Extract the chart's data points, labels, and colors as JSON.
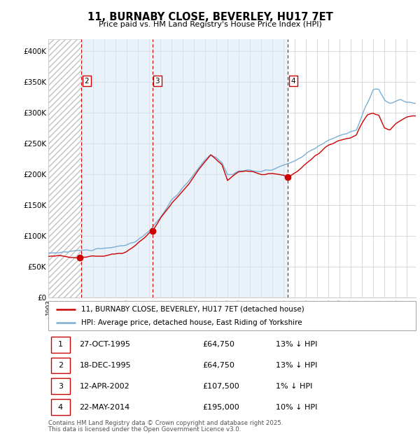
{
  "title": "11, BURNABY CLOSE, BEVERLEY, HU17 7ET",
  "subtitle": "Price paid vs. HM Land Registry's House Price Index (HPI)",
  "transactions": [
    {
      "num": 1,
      "date_label": "27-OCT-1995",
      "price": 64750,
      "pct": "13%",
      "dir": "↓",
      "year_x": 1995.82
    },
    {
      "num": 2,
      "date_label": "18-DEC-1995",
      "price": 64750,
      "pct": "13%",
      "dir": "↓",
      "year_x": 1995.96
    },
    {
      "num": 3,
      "date_label": "12-APR-2002",
      "price": 107500,
      "pct": "1%",
      "dir": "↓",
      "year_x": 2002.28
    },
    {
      "num": 4,
      "date_label": "22-MAY-2014",
      "price": 195000,
      "pct": "10%",
      "dir": "↓",
      "year_x": 2014.39
    }
  ],
  "legend_line1": "11, BURNABY CLOSE, BEVERLEY, HU17 7ET (detached house)",
  "legend_line2": "HPI: Average price, detached house, East Riding of Yorkshire",
  "footer1": "Contains HM Land Registry data © Crown copyright and database right 2025.",
  "footer2": "This data is licensed under the Open Government Licence v3.0.",
  "hpi_color": "#7bafd4",
  "price_color": "#cc0000",
  "marker_color": "#cc0000",
  "vline_color": "#cc0000",
  "bg_shaded_color": "#d8e8f5",
  "grid_color": "#cccccc",
  "ylim": [
    0,
    420000
  ],
  "yticks": [
    0,
    50000,
    100000,
    150000,
    200000,
    250000,
    300000,
    350000,
    400000
  ],
  "ytick_labels": [
    "£0",
    "£50K",
    "£100K",
    "£150K",
    "£200K",
    "£250K",
    "£300K",
    "£350K",
    "£400K"
  ],
  "xlim_start": 1993.0,
  "xlim_end": 2025.8,
  "hatch_end": 1995.96,
  "shade_start": 1995.96,
  "shade_end": 2014.39
}
